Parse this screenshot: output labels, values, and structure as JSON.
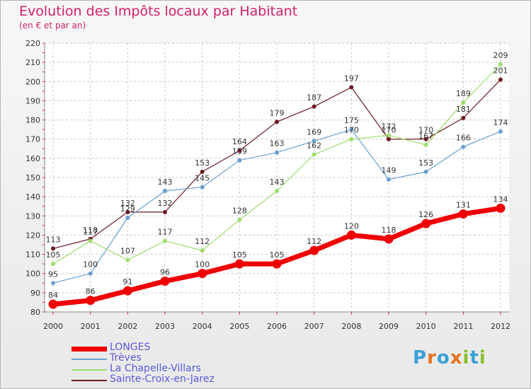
{
  "title": "Evolution des Impôts locaux par Habitant",
  "subtitle": "(en € et par an)",
  "logo": {
    "text": "Proxiti",
    "letters": [
      "P",
      "r",
      "o",
      "x",
      "i",
      "t",
      "i"
    ],
    "colors": [
      "#3aa0d6",
      "#e3731f",
      "#3aa0d6",
      "#e3731f",
      "#8bbf2e",
      "#3aa0d6",
      "#8bbf2e"
    ]
  },
  "chart_data": {
    "type": "line",
    "title": "Evolution des Impôts locaux par Habitant",
    "subtitle": "(en € et par an)",
    "xlabel": "",
    "ylabel": "",
    "ylim": [
      80,
      220
    ],
    "yticks": [
      "80",
      "90",
      "100",
      "110",
      "120",
      "130",
      "140",
      "150",
      "160",
      "170",
      "180",
      "190",
      "200",
      "210",
      "220"
    ],
    "categories": [
      "2000",
      "2001",
      "2002",
      "2003",
      "2004",
      "2005",
      "2006",
      "2007",
      "2008",
      "2009",
      "2010",
      "2011",
      "2012"
    ],
    "grid": true,
    "legend_position": "bottom-left",
    "series": [
      {
        "name": "Sainte-Croix-en-Jarez",
        "color": "#6b1a24",
        "width": 1.2,
        "marker": 3,
        "values": [
          113,
          118,
          132,
          132,
          153,
          164,
          179,
          187,
          197,
          170,
          170,
          181,
          201
        ]
      },
      {
        "name": "Trèves",
        "color": "#6a9fd0",
        "width": 1.2,
        "marker": 3,
        "values": [
          95,
          100,
          129,
          143,
          145,
          159,
          163,
          169,
          175,
          149,
          153,
          166,
          174
        ]
      },
      {
        "name": "La Chapelle-Villars",
        "color": "#9fdc6d",
        "width": 1.2,
        "marker": 3,
        "values": [
          105,
          117,
          107,
          117,
          112,
          128,
          143,
          162,
          170,
          172,
          167,
          189,
          209
        ]
      },
      {
        "name": "LONGES",
        "color": "#ee0000",
        "width": 7,
        "marker": 6.5,
        "values": [
          84,
          86,
          91,
          96,
          100,
          105,
          105,
          112,
          120,
          118,
          126,
          131,
          134
        ]
      }
    ],
    "legend": [
      {
        "name": "LONGES",
        "color": "#ee0000",
        "label_color": "#5a5ad6",
        "thickness": 7
      },
      {
        "name": "Trèves",
        "color": "#6a9fd0",
        "label_color": "#5a5ad6",
        "thickness": 2
      },
      {
        "name": "La Chapelle-Villars",
        "color": "#9fdc6d",
        "label_color": "#5a5ad6",
        "thickness": 2
      },
      {
        "name": "Sainte-Croix-en-Jarez",
        "color": "#6b1a24",
        "label_color": "#5a5ad6",
        "thickness": 2
      }
    ]
  }
}
